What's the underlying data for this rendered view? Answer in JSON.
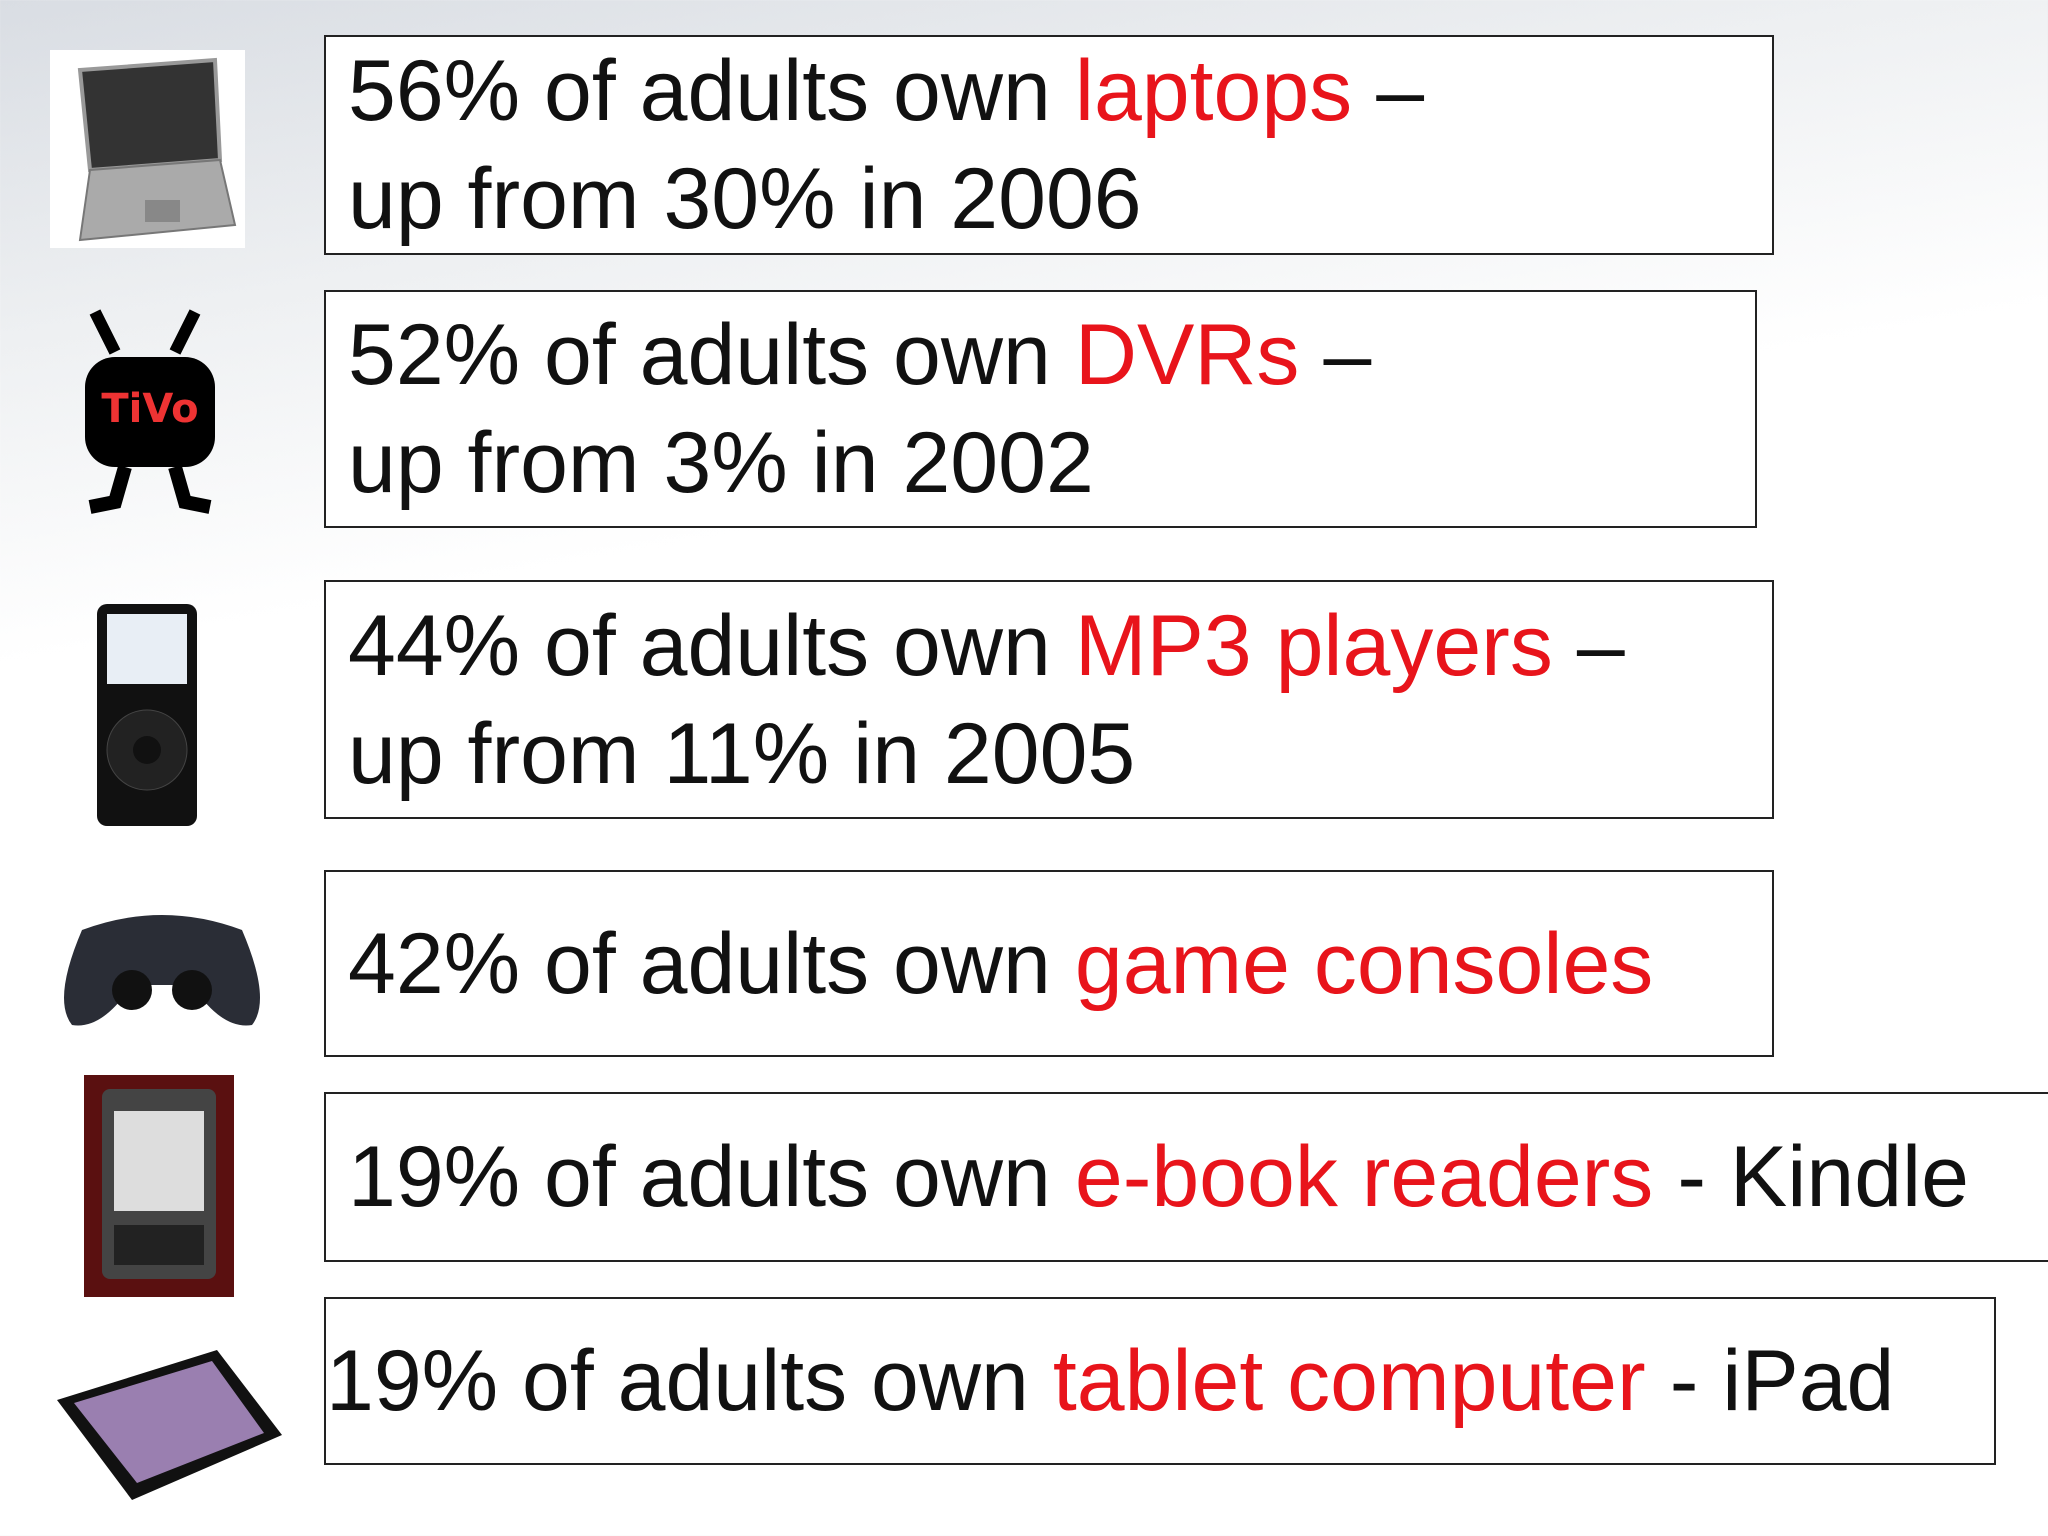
{
  "items": [
    {
      "lead": "56% of adults own",
      "highlight": "laptops",
      "tail": "–",
      "line2": "up from 30% in 2006"
    },
    {
      "lead": "52% of adults own",
      "highlight": "DVRs",
      "tail": "–",
      "line2": "up from 3% in 2002"
    },
    {
      "lead": "44% of adults own",
      "highlight": "MP3 players",
      "tail": "–",
      "line2": "up from 11% in 2005"
    },
    {
      "lead": "42% of adults own",
      "highlight": "game consoles"
    },
    {
      "lead": "19% of adults own",
      "highlight": "e-book readers",
      "tail": "- Kindle"
    },
    {
      "lead": "19% of adults own",
      "highlight": "tablet computer",
      "tail": "- iPad"
    }
  ]
}
